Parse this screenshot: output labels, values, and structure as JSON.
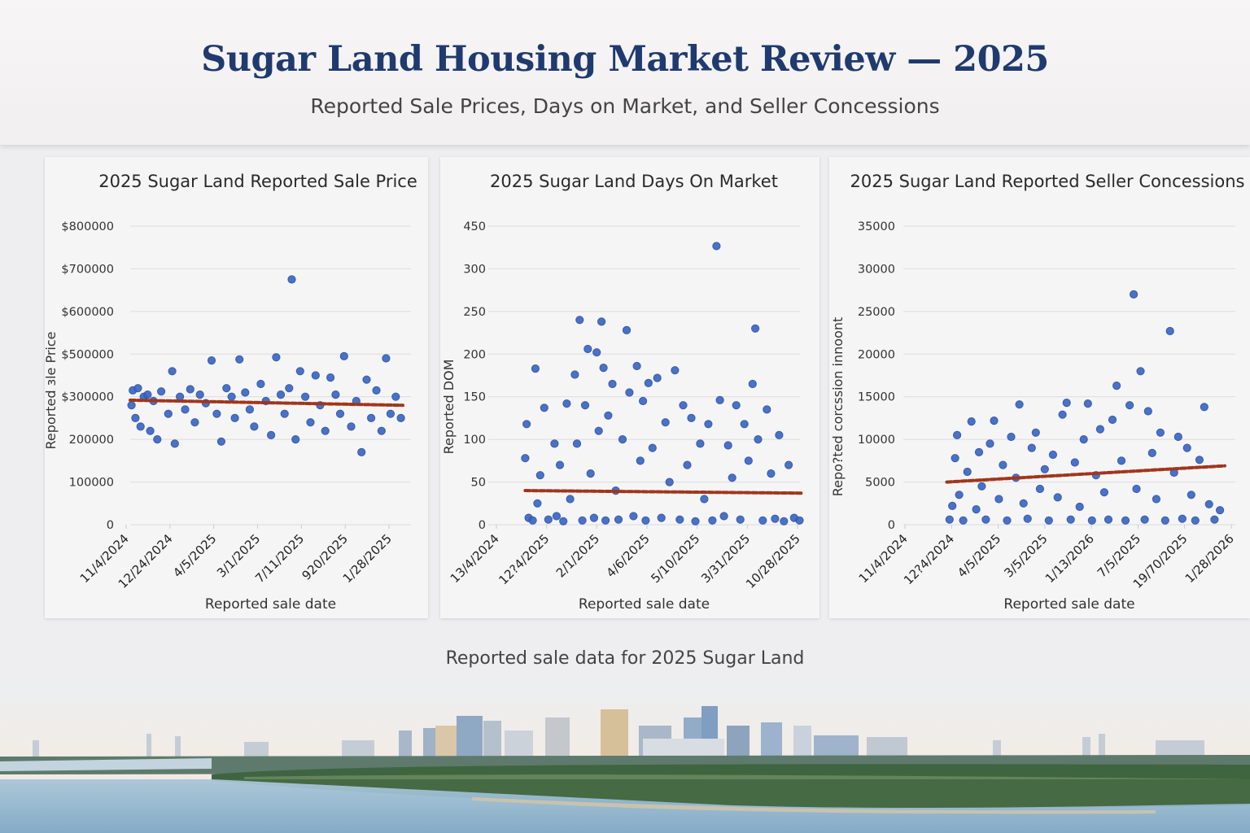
{
  "header": {
    "title": "Sugar Land Housing Market Review — 2025",
    "subtitle": "Reported Sale Prices, Days on Market, and Seller Concessions"
  },
  "footer": {
    "caption": "Reported sale data for 2025 Sugar Land"
  },
  "colors": {
    "title": "#1f3a6e",
    "points": "#3a67c4",
    "trend": "#a0361c"
  },
  "chart_data": [
    {
      "type": "scatter",
      "title": "2025 Sugar Land Reported Sale Price",
      "xlabel": "Reported sale date",
      "ylabel": "Reported ɜle Price",
      "xlim": [
        "2024-11-04",
        "2025-12-31"
      ],
      "x_tick_labels": [
        "11/4/2024",
        "12/24/2024",
        "4/5/2025",
        "3/1/2025",
        "7/11/2025",
        "920/2025",
        "1/28/2025"
      ],
      "y_ticks": [
        0,
        100000,
        200000,
        300000,
        500000,
        600000,
        700000,
        800000
      ],
      "y_tick_labels": [
        "0",
        "100000",
        "200000",
        "$300000",
        "$500000",
        "$600000",
        "$700000",
        "$800000"
      ],
      "grid": true,
      "trend": [
        [
          "2024-11-04",
          292000
        ],
        [
          "2025-12-31",
          280000
        ]
      ],
      "points": [
        [
          "2024-11-06",
          280000
        ],
        [
          "2024-11-08",
          330000
        ],
        [
          "2024-11-12",
          250000
        ],
        [
          "2024-11-16",
          340000
        ],
        [
          "2024-11-20",
          230000
        ],
        [
          "2024-11-25",
          300000
        ],
        [
          "2024-12-01",
          310000
        ],
        [
          "2024-12-05",
          220000
        ],
        [
          "2024-12-10",
          290000
        ],
        [
          "2024-12-16",
          200000
        ],
        [
          "2024-12-22",
          325000
        ],
        [
          "2025-01-02",
          260000
        ],
        [
          "2025-01-08",
          420000
        ],
        [
          "2025-01-12",
          190000
        ],
        [
          "2025-01-20",
          300000
        ],
        [
          "2025-01-28",
          270000
        ],
        [
          "2025-02-05",
          335000
        ],
        [
          "2025-02-12",
          240000
        ],
        [
          "2025-02-20",
          310000
        ],
        [
          "2025-03-01",
          285000
        ],
        [
          "2025-03-10",
          470000
        ],
        [
          "2025-03-18",
          260000
        ],
        [
          "2025-03-25",
          195000
        ],
        [
          "2025-04-02",
          340000
        ],
        [
          "2025-04-10",
          300000
        ],
        [
          "2025-04-15",
          250000
        ],
        [
          "2025-04-22",
          475000
        ],
        [
          "2025-05-01",
          320000
        ],
        [
          "2025-05-08",
          270000
        ],
        [
          "2025-05-15",
          230000
        ],
        [
          "2025-05-25",
          360000
        ],
        [
          "2025-06-02",
          290000
        ],
        [
          "2025-06-10",
          210000
        ],
        [
          "2025-06-18",
          485000
        ],
        [
          "2025-06-25",
          310000
        ],
        [
          "2025-07-01",
          260000
        ],
        [
          "2025-07-08",
          340000
        ],
        [
          "2025-07-12",
          675000
        ],
        [
          "2025-07-18",
          200000
        ],
        [
          "2025-07-25",
          420000
        ],
        [
          "2025-08-02",
          300000
        ],
        [
          "2025-08-10",
          240000
        ],
        [
          "2025-08-18",
          400000
        ],
        [
          "2025-08-25",
          280000
        ],
        [
          "2025-09-02",
          220000
        ],
        [
          "2025-09-10",
          390000
        ],
        [
          "2025-09-18",
          310000
        ],
        [
          "2025-09-25",
          260000
        ],
        [
          "2025-10-01",
          490000
        ],
        [
          "2025-10-12",
          230000
        ],
        [
          "2025-10-20",
          290000
        ],
        [
          "2025-10-28",
          170000
        ],
        [
          "2025-11-05",
          380000
        ],
        [
          "2025-11-12",
          250000
        ],
        [
          "2025-11-20",
          330000
        ],
        [
          "2025-11-28",
          220000
        ],
        [
          "2025-12-05",
          480000
        ],
        [
          "2025-12-12",
          260000
        ],
        [
          "2025-12-20",
          300000
        ],
        [
          "2025-12-28",
          250000
        ]
      ]
    },
    {
      "type": "scatter",
      "title": "2025 Sugar Land Days On Market",
      "xlabel": "Reported sale date",
      "ylabel": "Reported DOM",
      "xlim": [
        "2024-11-04",
        "2025-12-31"
      ],
      "x_tick_labels": [
        "13/4/2024",
        "12?4/2025",
        "2/1/2025",
        "4/6/2025",
        "5/10/2025",
        "3/31/2025",
        "10/28/2025"
      ],
      "y_ticks": [
        0,
        50,
        100,
        150,
        200,
        250,
        300,
        450
      ],
      "y_tick_labels": [
        "0",
        "50",
        "100",
        "150",
        "200",
        "250",
        "300",
        "450"
      ],
      "grid": true,
      "trend": [
        [
          "2024-11-20",
          40
        ],
        [
          "2025-12-31",
          37
        ]
      ],
      "points": [
        [
          "2024-11-20",
          78
        ],
        [
          "2024-11-22",
          118
        ],
        [
          "2024-11-25",
          8
        ],
        [
          "2024-12-01",
          5
        ],
        [
          "2024-12-05",
          183
        ],
        [
          "2024-12-08",
          25
        ],
        [
          "2024-12-12",
          58
        ],
        [
          "2024-12-18",
          137
        ],
        [
          "2024-12-24",
          6
        ],
        [
          "2025-01-02",
          95
        ],
        [
          "2025-01-05",
          10
        ],
        [
          "2025-01-10",
          70
        ],
        [
          "2025-01-15",
          4
        ],
        [
          "2025-01-20",
          142
        ],
        [
          "2025-01-25",
          30
        ],
        [
          "2025-02-01",
          176
        ],
        [
          "2025-02-04",
          95
        ],
        [
          "2025-02-08",
          240
        ],
        [
          "2025-02-12",
          5
        ],
        [
          "2025-02-16",
          140
        ],
        [
          "2025-02-20",
          206
        ],
        [
          "2025-02-24",
          60
        ],
        [
          "2025-03-01",
          8
        ],
        [
          "2025-03-05",
          202
        ],
        [
          "2025-03-08",
          110
        ],
        [
          "2025-03-12",
          238
        ],
        [
          "2025-03-15",
          184
        ],
        [
          "2025-03-18",
          5
        ],
        [
          "2025-03-22",
          128
        ],
        [
          "2025-03-28",
          165
        ],
        [
          "2025-04-02",
          40
        ],
        [
          "2025-04-06",
          6
        ],
        [
          "2025-04-12",
          100
        ],
        [
          "2025-04-18",
          228
        ],
        [
          "2025-04-22",
          155
        ],
        [
          "2025-04-28",
          10
        ],
        [
          "2025-05-03",
          186
        ],
        [
          "2025-05-08",
          75
        ],
        [
          "2025-05-12",
          145
        ],
        [
          "2025-05-16",
          5
        ],
        [
          "2025-05-20",
          166
        ],
        [
          "2025-05-26",
          90
        ],
        [
          "2025-06-02",
          172
        ],
        [
          "2025-06-08",
          8
        ],
        [
          "2025-06-14",
          120
        ],
        [
          "2025-06-20",
          50
        ],
        [
          "2025-06-28",
          181
        ],
        [
          "2025-07-05",
          6
        ],
        [
          "2025-07-10",
          140
        ],
        [
          "2025-07-16",
          70
        ],
        [
          "2025-07-22",
          125
        ],
        [
          "2025-07-28",
          4
        ],
        [
          "2025-08-04",
          95
        ],
        [
          "2025-08-10",
          30
        ],
        [
          "2025-08-16",
          118
        ],
        [
          "2025-08-22",
          5
        ],
        [
          "2025-08-28",
          380
        ],
        [
          "2025-09-02",
          146
        ],
        [
          "2025-09-08",
          10
        ],
        [
          "2025-09-14",
          93
        ],
        [
          "2025-09-20",
          55
        ],
        [
          "2025-09-26",
          140
        ],
        [
          "2025-10-02",
          6
        ],
        [
          "2025-10-08",
          118
        ],
        [
          "2025-10-14",
          75
        ],
        [
          "2025-10-20",
          165
        ],
        [
          "2025-10-24",
          230
        ],
        [
          "2025-10-28",
          100
        ],
        [
          "2025-11-04",
          5
        ],
        [
          "2025-11-10",
          135
        ],
        [
          "2025-11-16",
          60
        ],
        [
          "2025-11-22",
          7
        ],
        [
          "2025-11-28",
          105
        ],
        [
          "2025-12-05",
          4
        ],
        [
          "2025-12-12",
          70
        ],
        [
          "2025-12-20",
          8
        ],
        [
          "2025-12-28",
          5
        ]
      ]
    },
    {
      "type": "scatter",
      "title": "2025 Sugar Land Reported Seller Concessions",
      "xlabel": "Reported sale date",
      "ylabel": "Repo?ted corcssion innoont",
      "xlim": [
        "2024-11-04",
        "2025-12-31"
      ],
      "x_tick_labels": [
        "11/4/2024",
        "12?4/2024",
        "4/5/2025",
        "3/5/2025",
        "1/13/2026",
        "7/5/2025",
        "19/70/2025",
        "1/28/2026"
      ],
      "y_ticks": [
        0,
        5000,
        10000,
        15000,
        20000,
        25000,
        30000,
        35000
      ],
      "y_tick_labels": [
        "0",
        "5000",
        "10000",
        "15000",
        "20000",
        "25000",
        "30000",
        "35000"
      ],
      "grid": true,
      "trend": [
        [
          "2024-11-20",
          5000
        ],
        [
          "2025-12-31",
          6900
        ]
      ],
      "points": [
        [
          "2024-11-24",
          600
        ],
        [
          "2024-11-28",
          2200
        ],
        [
          "2024-12-02",
          7800
        ],
        [
          "2024-12-05",
          10500
        ],
        [
          "2024-12-08",
          3500
        ],
        [
          "2024-12-14",
          500
        ],
        [
          "2024-12-20",
          6200
        ],
        [
          "2024-12-26",
          12100
        ],
        [
          "2025-01-02",
          1800
        ],
        [
          "2025-01-06",
          8500
        ],
        [
          "2025-01-10",
          4500
        ],
        [
          "2025-01-16",
          600
        ],
        [
          "2025-01-22",
          9500
        ],
        [
          "2025-01-28",
          12200
        ],
        [
          "2025-02-04",
          3000
        ],
        [
          "2025-02-10",
          7000
        ],
        [
          "2025-02-16",
          500
        ],
        [
          "2025-02-22",
          10300
        ],
        [
          "2025-03-01",
          5500
        ],
        [
          "2025-03-06",
          14100
        ],
        [
          "2025-03-12",
          2500
        ],
        [
          "2025-03-18",
          700
        ],
        [
          "2025-03-24",
          9000
        ],
        [
          "2025-03-30",
          10800
        ],
        [
          "2025-04-05",
          4200
        ],
        [
          "2025-04-12",
          6500
        ],
        [
          "2025-04-18",
          500
        ],
        [
          "2025-04-24",
          8200
        ],
        [
          "2025-05-01",
          3200
        ],
        [
          "2025-05-08",
          12900
        ],
        [
          "2025-05-14",
          14300
        ],
        [
          "2025-05-20",
          600
        ],
        [
          "2025-05-26",
          7300
        ],
        [
          "2025-06-02",
          2100
        ],
        [
          "2025-06-08",
          10000
        ],
        [
          "2025-06-14",
          14200
        ],
        [
          "2025-06-20",
          500
        ],
        [
          "2025-06-26",
          5800
        ],
        [
          "2025-07-02",
          11200
        ],
        [
          "2025-07-08",
          3800
        ],
        [
          "2025-07-14",
          600
        ],
        [
          "2025-07-20",
          12300
        ],
        [
          "2025-07-26",
          16300
        ],
        [
          "2025-08-02",
          7500
        ],
        [
          "2025-08-08",
          500
        ],
        [
          "2025-08-14",
          14000
        ],
        [
          "2025-08-20",
          27000
        ],
        [
          "2025-08-24",
          4200
        ],
        [
          "2025-08-30",
          18000
        ],
        [
          "2025-09-05",
          600
        ],
        [
          "2025-09-10",
          13300
        ],
        [
          "2025-09-16",
          8400
        ],
        [
          "2025-09-22",
          3000
        ],
        [
          "2025-09-28",
          10800
        ],
        [
          "2025-10-05",
          500
        ],
        [
          "2025-10-12",
          22700
        ],
        [
          "2025-10-18",
          6100
        ],
        [
          "2025-10-24",
          10300
        ],
        [
          "2025-10-30",
          700
        ],
        [
          "2025-11-06",
          9000
        ],
        [
          "2025-11-12",
          3500
        ],
        [
          "2025-11-18",
          500
        ],
        [
          "2025-11-24",
          7600
        ],
        [
          "2025-12-01",
          13800
        ],
        [
          "2025-12-08",
          2400
        ],
        [
          "2025-12-16",
          600
        ],
        [
          "2025-12-24",
          1700
        ]
      ]
    }
  ]
}
